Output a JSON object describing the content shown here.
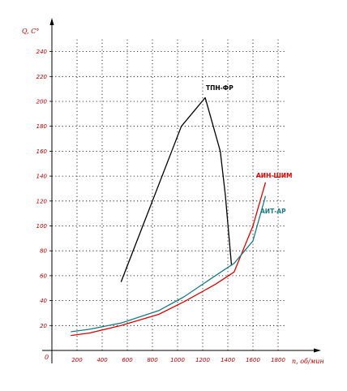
{
  "chart_data": {
    "type": "line",
    "ylabel": "Q, С°",
    "xlabel": "n, об/мин",
    "origin_label": "0",
    "xlim": [
      0,
      2000
    ],
    "ylim": [
      0,
      250
    ],
    "x_ticks": [
      200,
      400,
      600,
      800,
      1000,
      1200,
      1400,
      1600,
      1800
    ],
    "y_ticks": [
      20,
      40,
      60,
      80,
      100,
      120,
      140,
      160,
      180,
      200,
      220,
      240
    ],
    "grid": true,
    "series": [
      {
        "name": "ТПН-ФР",
        "color": "#000000",
        "x": [
          550,
          1030,
          1220,
          1340,
          1380,
          1430
        ],
        "y": [
          55,
          180,
          203,
          160,
          125,
          68
        ]
      },
      {
        "name": "АИН-ШИМ",
        "color": "#e00000",
        "x": [
          150,
          300,
          550,
          850,
          1050,
          1300,
          1450,
          1600,
          1700
        ],
        "y": [
          12,
          14,
          20,
          29,
          39,
          53,
          63,
          100,
          135
        ]
      },
      {
        "name": "АИТ-АР",
        "color": "#1a7a85",
        "x": [
          150,
          300,
          550,
          850,
          1050,
          1300,
          1450,
          1600,
          1700
        ],
        "y": [
          15,
          17,
          22,
          32,
          43,
          60,
          70,
          88,
          124
        ]
      }
    ]
  }
}
